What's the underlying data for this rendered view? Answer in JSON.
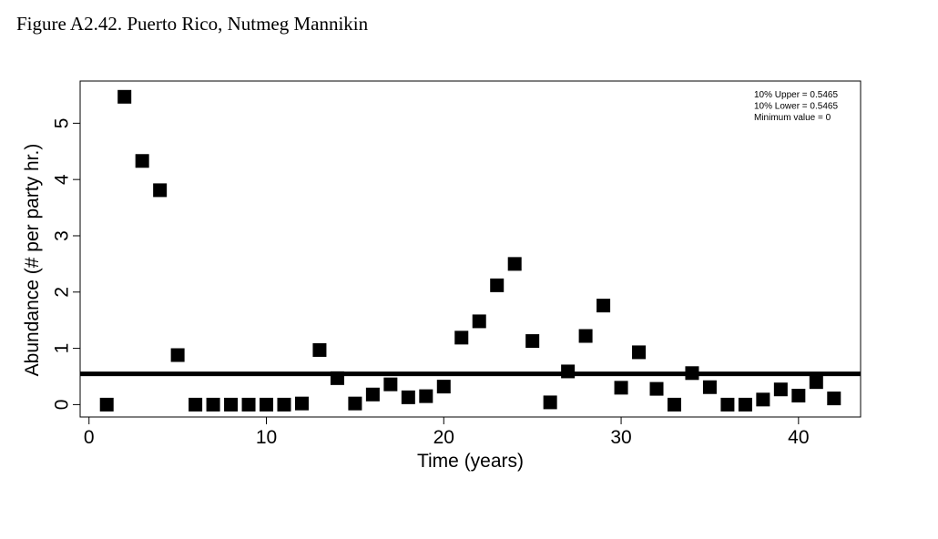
{
  "figure": {
    "title": "Figure A2.42. Puerto Rico, Nutmeg Mannikin"
  },
  "chart_data": {
    "type": "scatter",
    "title": "Figure A2.42. Puerto Rico, Nutmeg Mannikin",
    "xlabel": "Time (years)",
    "ylabel": "Abundance (# per party hr.)",
    "xlim": [
      -0.5,
      43.5
    ],
    "ylim": [
      -0.22,
      5.75
    ],
    "xticks": [
      0,
      10,
      20,
      30,
      40
    ],
    "yticks": [
      0,
      1,
      2,
      3,
      4,
      5
    ],
    "grid": false,
    "marker": "square",
    "marker_color": "#000000",
    "line_color": "#000000",
    "x": [
      1,
      2,
      3,
      4,
      5,
      6,
      7,
      8,
      9,
      10,
      11,
      12,
      13,
      14,
      15,
      16,
      17,
      18,
      19,
      20,
      21,
      22,
      23,
      24,
      25,
      26,
      27,
      28,
      29,
      30,
      31,
      32,
      33,
      34,
      35,
      36,
      37,
      38,
      39,
      40,
      41,
      42
    ],
    "y": [
      0,
      5.47,
      4.33,
      3.81,
      0.88,
      0,
      0,
      0,
      0,
      0,
      0,
      0.02,
      0.97,
      0.47,
      0.02,
      0.18,
      0.36,
      0.13,
      0.15,
      0.32,
      1.19,
      1.48,
      2.12,
      2.5,
      1.13,
      0.04,
      0.59,
      1.22,
      1.76,
      0.3,
      0.93,
      0.28,
      0,
      0.56,
      0.31,
      0,
      0,
      0.09,
      0.27,
      0.16,
      0.4,
      0.11
    ],
    "reference_line": {
      "y": 0.5465
    },
    "legend": {
      "position": "top-right",
      "lines": [
        "10% Upper =  0.5465",
        "10% Lower =  0.5465",
        "Minimum value =  0"
      ]
    }
  }
}
